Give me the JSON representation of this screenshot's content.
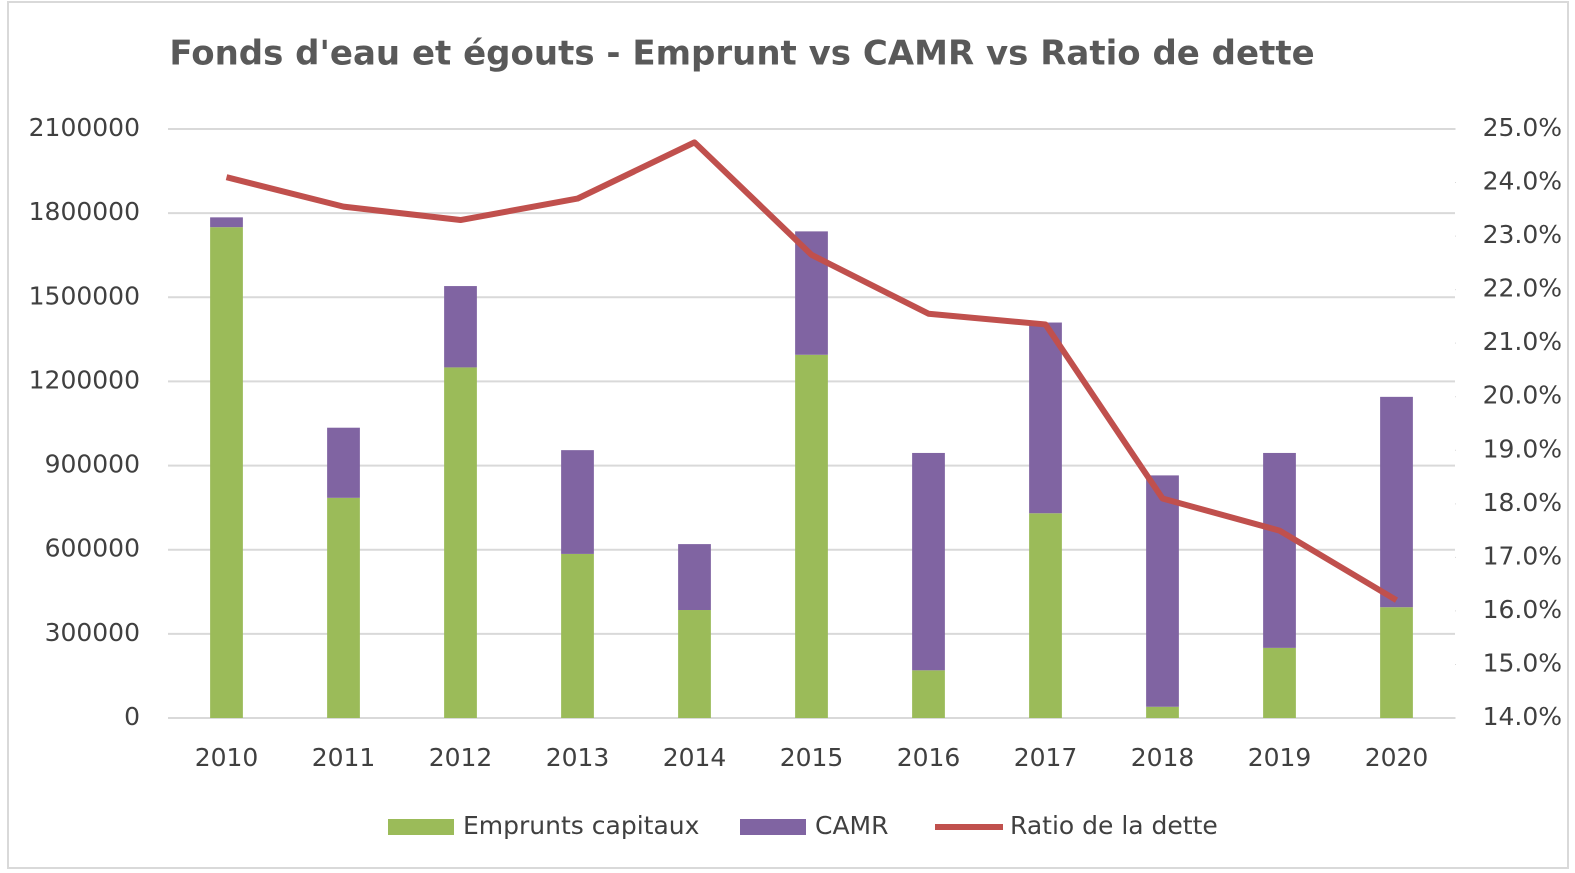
{
  "chart_data": {
    "type": "bar_line",
    "title": "Fonds d'eau et égouts - Emprunt vs CAMR vs Ratio de dette",
    "categories": [
      "2010",
      "2011",
      "2012",
      "2013",
      "2014",
      "2015",
      "2016",
      "2017",
      "2018",
      "2019",
      "2020"
    ],
    "series": [
      {
        "name": "Emprunts capitaux",
        "type": "bar",
        "color": "#9bbb59",
        "values": [
          1750000,
          785000,
          1250000,
          585000,
          385000,
          1295000,
          170000,
          730000,
          40000,
          250000,
          395000
        ]
      },
      {
        "name": "CAMR",
        "type": "bar",
        "color": "#8064a2",
        "values": [
          35000,
          250000,
          290000,
          370000,
          235000,
          440000,
          775000,
          680000,
          825000,
          695000,
          750000
        ]
      },
      {
        "name": "Ratio de la dette",
        "type": "line",
        "axis": "y2",
        "color": "#c0504d",
        "values": [
          24.1,
          23.55,
          23.3,
          23.7,
          24.75,
          22.65,
          21.55,
          21.35,
          18.1,
          17.5,
          16.2
        ]
      }
    ],
    "stacked": true,
    "ylim": [
      0,
      2100000
    ],
    "yticks": [
      0,
      300000,
      600000,
      900000,
      1200000,
      1500000,
      1800000,
      2100000
    ],
    "y2lim": [
      14,
      25
    ],
    "y2ticks": [
      {
        "value": 14,
        "label": "14.0%"
      },
      {
        "value": 15,
        "label": "15.0%"
      },
      {
        "value": 16,
        "label": "16.0%"
      },
      {
        "value": 17,
        "label": "17.0%"
      },
      {
        "value": 18,
        "label": "18.0%"
      },
      {
        "value": 19,
        "label": "19.0%"
      },
      {
        "value": 20,
        "label": "20.0%"
      },
      {
        "value": 21,
        "label": "21.0%"
      },
      {
        "value": 22,
        "label": "22.0%"
      },
      {
        "value": 23,
        "label": "23.0%"
      },
      {
        "value": 24,
        "label": "24.0%"
      },
      {
        "value": 25,
        "label": "25.0%"
      }
    ],
    "grid": true,
    "legend": "bottom"
  }
}
